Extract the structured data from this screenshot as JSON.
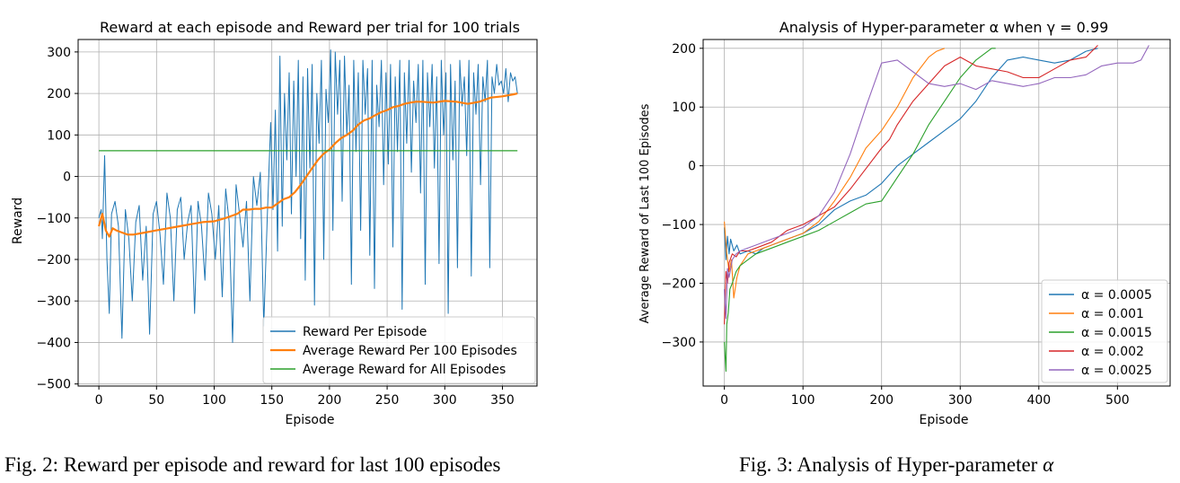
{
  "chart_data": [
    {
      "type": "line",
      "title": "Reward at each episode and Reward per trial for 100 trials",
      "xlabel": "Episode",
      "ylabel": "Reward",
      "xlim": [
        -18,
        380
      ],
      "ylim": [
        -505,
        330
      ],
      "xticks": [
        0,
        50,
        100,
        150,
        200,
        250,
        300,
        350
      ],
      "yticks": [
        -500,
        -400,
        -300,
        -200,
        -100,
        0,
        100,
        200,
        300
      ],
      "grid": true,
      "legend": "lower right",
      "series": [
        {
          "name": "Reward Per Episode",
          "color": "#1f77b4",
          "style": "thin",
          "x": [
            0,
            2,
            3,
            5,
            7,
            9,
            11,
            14,
            17,
            20,
            23,
            26,
            29,
            32,
            35,
            38,
            41,
            44,
            47,
            50,
            53,
            56,
            59,
            62,
            65,
            68,
            71,
            74,
            77,
            80,
            83,
            86,
            89,
            92,
            95,
            98,
            101,
            104,
            107,
            110,
            113,
            116,
            119,
            122,
            125,
            128,
            131,
            134,
            137,
            140,
            143,
            146,
            149,
            151,
            153,
            155,
            157,
            159,
            161,
            163,
            165,
            167,
            169,
            171,
            173,
            175,
            177,
            179,
            181,
            183,
            185,
            187,
            189,
            191,
            193,
            195,
            197,
            199,
            201,
            203,
            205,
            207,
            209,
            211,
            213,
            215,
            217,
            219,
            221,
            223,
            225,
            227,
            229,
            231,
            233,
            235,
            237,
            239,
            241,
            243,
            245,
            247,
            249,
            251,
            253,
            255,
            257,
            259,
            261,
            263,
            265,
            267,
            269,
            271,
            273,
            275,
            277,
            279,
            281,
            283,
            285,
            287,
            289,
            291,
            293,
            295,
            297,
            299,
            301,
            303,
            305,
            307,
            309,
            311,
            313,
            315,
            317,
            319,
            321,
            323,
            325,
            327,
            329,
            331,
            333,
            335,
            337,
            339,
            341,
            343,
            345,
            347,
            349,
            351,
            353,
            355,
            357,
            359,
            361,
            363
          ],
          "values": [
            -100,
            -80,
            -150,
            50,
            -200,
            -330,
            -90,
            -60,
            -120,
            -390,
            -80,
            -150,
            -300,
            -110,
            -70,
            -250,
            -120,
            -380,
            -90,
            -60,
            -140,
            -260,
            -40,
            -100,
            -300,
            -80,
            -50,
            -200,
            -110,
            -70,
            -330,
            -60,
            -120,
            -250,
            -40,
            -90,
            -200,
            -70,
            -290,
            -30,
            -110,
            -400,
            -20,
            -90,
            -170,
            -60,
            -300,
            0,
            -70,
            10,
            -360,
            -100,
            130,
            -80,
            160,
            -180,
            290,
            -120,
            200,
            40,
            250,
            -90,
            230,
            0,
            280,
            -150,
            240,
            -250,
            260,
            20,
            270,
            -310,
            200,
            80,
            280,
            -200,
            210,
            130,
            305,
            -130,
            300,
            150,
            280,
            -60,
            290,
            100,
            220,
            -260,
            280,
            60,
            250,
            -130,
            280,
            150,
            260,
            -190,
            280,
            -270,
            220,
            120,
            280,
            -20,
            250,
            30,
            270,
            -170,
            240,
            60,
            280,
            -320,
            250,
            80,
            280,
            10,
            230,
            130,
            270,
            -40,
            280,
            -260,
            250,
            120,
            270,
            20,
            240,
            -210,
            280,
            100,
            250,
            -330,
            270,
            40,
            230,
            -220,
            280,
            170,
            240,
            50,
            280,
            -240,
            250,
            150,
            270,
            -20,
            240,
            180,
            280,
            -220,
            240,
            200,
            270,
            220,
            230,
            200,
            260,
            180,
            250,
            230,
            240,
            200
          ]
        },
        {
          "name": "Average Reward Per 100 Episodes",
          "color": "#ff7f0e",
          "style": "thick",
          "x": [
            0,
            3,
            6,
            9,
            12,
            15,
            20,
            25,
            30,
            40,
            50,
            60,
            70,
            80,
            90,
            100,
            110,
            115,
            120,
            125,
            130,
            135,
            140,
            145,
            150,
            155,
            160,
            165,
            170,
            175,
            180,
            185,
            190,
            195,
            200,
            205,
            210,
            215,
            220,
            225,
            230,
            235,
            240,
            245,
            250,
            255,
            260,
            265,
            270,
            275,
            280,
            290,
            300,
            310,
            320,
            330,
            340,
            350,
            360,
            363
          ],
          "values": [
            -120,
            -90,
            -130,
            -145,
            -125,
            -130,
            -135,
            -140,
            -140,
            -135,
            -130,
            -125,
            -120,
            -115,
            -110,
            -108,
            -100,
            -95,
            -90,
            -80,
            -80,
            -78,
            -78,
            -75,
            -75,
            -65,
            -55,
            -50,
            -38,
            -20,
            0,
            20,
            40,
            55,
            65,
            80,
            92,
            100,
            110,
            125,
            135,
            140,
            148,
            155,
            160,
            167,
            170,
            175,
            178,
            180,
            180,
            178,
            182,
            180,
            175,
            180,
            190,
            193,
            198,
            200
          ]
        },
        {
          "name": "Average Reward for All Episodes",
          "color": "#2ca02c",
          "style": "flat",
          "x": [
            0,
            363
          ],
          "values": [
            62,
            62
          ]
        }
      ]
    },
    {
      "type": "line",
      "title": "Analysis of Hyper-parameter α when γ = 0.99",
      "xlabel": "Episode",
      "ylabel": "Average Reward of Last 100 Episodes",
      "xlim": [
        -27,
        567
      ],
      "ylim": [
        -375,
        215
      ],
      "xticks": [
        0,
        100,
        200,
        300,
        400,
        500
      ],
      "yticks": [
        -300,
        -200,
        -100,
        0,
        100,
        200
      ],
      "grid": true,
      "legend": "lower right",
      "series": [
        {
          "name": "α = 0.0005",
          "color": "#1f77b4",
          "x": [
            0,
            2,
            4,
            6,
            8,
            12,
            16,
            20,
            30,
            40,
            50,
            60,
            80,
            100,
            120,
            140,
            160,
            180,
            200,
            220,
            240,
            260,
            280,
            300,
            320,
            340,
            360,
            380,
            400,
            420,
            440,
            460,
            475
          ],
          "values": [
            -105,
            -160,
            -120,
            -150,
            -125,
            -145,
            -135,
            -150,
            -145,
            -150,
            -140,
            -135,
            -125,
            -115,
            -100,
            -75,
            -60,
            -50,
            -30,
            0,
            20,
            40,
            60,
            80,
            110,
            150,
            180,
            185,
            180,
            175,
            180,
            195,
            200
          ]
        },
        {
          "name": "α = 0.001",
          "color": "#ff7f0e",
          "x": [
            0,
            3,
            6,
            9,
            12,
            16,
            20,
            30,
            40,
            50,
            60,
            80,
            100,
            120,
            140,
            160,
            180,
            200,
            220,
            240,
            260,
            270,
            280
          ],
          "values": [
            -95,
            -150,
            -180,
            -160,
            -225,
            -190,
            -170,
            -150,
            -145,
            -140,
            -135,
            -125,
            -115,
            -95,
            -60,
            -20,
            30,
            60,
            100,
            150,
            185,
            195,
            200
          ]
        },
        {
          "name": "α = 0.0015",
          "color": "#2ca02c",
          "x": [
            0,
            2,
            3,
            5,
            7,
            10,
            15,
            20,
            30,
            40,
            60,
            80,
            100,
            120,
            140,
            160,
            180,
            200,
            210,
            220,
            240,
            260,
            280,
            300,
            320,
            340,
            345
          ],
          "values": [
            -300,
            -350,
            -270,
            -250,
            -210,
            -200,
            -180,
            -170,
            -160,
            -150,
            -140,
            -130,
            -120,
            -110,
            -95,
            -80,
            -65,
            -60,
            -40,
            -20,
            20,
            70,
            110,
            150,
            180,
            200,
            200
          ]
        },
        {
          "name": "α = 0.002",
          "color": "#d62728",
          "x": [
            0,
            2,
            4,
            6,
            10,
            15,
            20,
            30,
            40,
            60,
            80,
            100,
            120,
            140,
            160,
            180,
            200,
            210,
            220,
            240,
            260,
            280,
            300,
            320,
            340,
            360,
            380,
            400,
            420,
            440,
            460,
            475
          ],
          "values": [
            -270,
            -180,
            -200,
            -165,
            -150,
            -155,
            -145,
            -145,
            -140,
            -130,
            -110,
            -100,
            -85,
            -70,
            -40,
            -5,
            30,
            45,
            70,
            110,
            140,
            170,
            185,
            170,
            165,
            160,
            150,
            150,
            165,
            180,
            185,
            205
          ]
        },
        {
          "name": "α = 0.0025",
          "color": "#9467bd",
          "x": [
            0,
            2,
            4,
            6,
            10,
            15,
            20,
            40,
            60,
            80,
            100,
            120,
            140,
            160,
            180,
            200,
            220,
            240,
            260,
            280,
            300,
            320,
            340,
            360,
            380,
            400,
            420,
            440,
            460,
            480,
            500,
            520,
            530,
            540
          ],
          "values": [
            -210,
            -260,
            -175,
            -190,
            -160,
            -150,
            -145,
            -135,
            -125,
            -115,
            -105,
            -85,
            -45,
            20,
            100,
            175,
            180,
            160,
            140,
            135,
            140,
            130,
            145,
            140,
            135,
            140,
            150,
            150,
            155,
            170,
            175,
            175,
            180,
            205
          ]
        }
      ]
    }
  ],
  "captions": {
    "fig2": "Fig. 2: Reward per episode and reward for last 100 episodes",
    "fig3_prefix": "Fig. 3: Analysis of Hyper-parameter ",
    "fig3_symbol": "α"
  }
}
